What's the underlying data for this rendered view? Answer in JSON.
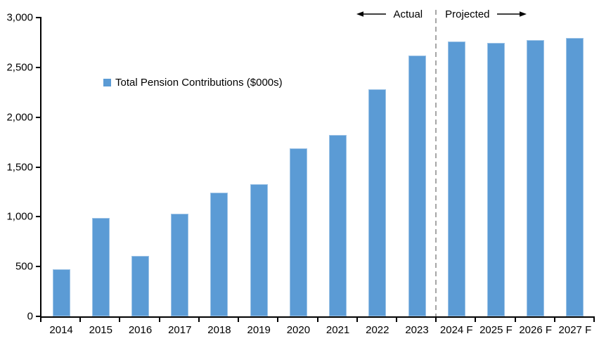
{
  "chart_data": {
    "type": "bar",
    "title": "",
    "legend_label": "Total Pension Contributions ($000s)",
    "categories": [
      "2014",
      "2015",
      "2016",
      "2017",
      "2018",
      "2019",
      "2020",
      "2021",
      "2022",
      "2023",
      "2024 F",
      "2025 F",
      "2026 F",
      "2027 F"
    ],
    "values": [
      470,
      990,
      610,
      1030,
      1240,
      1330,
      1690,
      1820,
      2280,
      2620,
      2760,
      2745,
      2775,
      2795
    ],
    "xlabel": "",
    "ylabel": "",
    "ylim": [
      0,
      3000
    ],
    "ytick_values": [
      0,
      500,
      1000,
      1500,
      2000,
      2500,
      3000
    ],
    "ytick_labels": [
      "0",
      "500",
      "1,000",
      "1,500",
      "2,000",
      "2,500",
      "3,000"
    ],
    "grid": false,
    "legend_position": "inside-top-left",
    "actual_count": 10,
    "annotations": {
      "actual_label": "Actual",
      "projected_label": "Projected"
    },
    "colors": {
      "bar": "#5B9BD5",
      "bar_edge": "#9DC3E6",
      "divider": "#A6A6A6",
      "axis": "#000000",
      "text": "#000000"
    }
  }
}
